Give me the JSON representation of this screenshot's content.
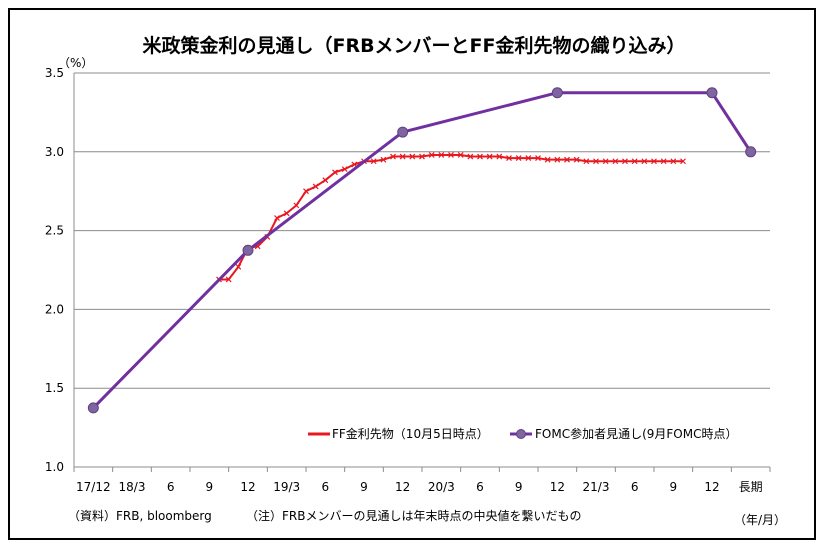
{
  "chart_data": {
    "type": "line",
    "title": "米政策金利の見通し（FRBメンバーとFF金利先物の織り込み）",
    "ylabel": "（%）",
    "xlabel": "（年/月）",
    "ylim": [
      1.0,
      3.5
    ],
    "yticks": [
      "1.0",
      "1.5",
      "2.0",
      "2.5",
      "3.0",
      "3.5"
    ],
    "grid": true,
    "legend_position": "bottom-right",
    "categories": [
      "17/12",
      "18/3",
      "6",
      "9",
      "12",
      "19/3",
      "6",
      "9",
      "12",
      "20/3",
      "6",
      "9",
      "12",
      "21/3",
      "6",
      "9",
      "12",
      "長期"
    ],
    "series": [
      {
        "name": "FF金利先物（10月5日時点）",
        "color": "#e8181f",
        "marker": "x",
        "x": [
          3.25,
          3.5,
          3.75,
          4.0,
          4.25,
          4.5,
          4.75,
          5.0,
          5.25,
          5.5,
          5.75,
          6.0,
          6.25,
          6.5,
          6.75,
          7.0,
          7.25,
          7.5,
          7.75,
          8.0,
          8.25,
          8.5,
          8.75,
          9.0,
          9.25,
          9.5,
          9.75,
          10.0,
          10.25,
          10.5,
          10.75,
          11.0,
          11.25,
          11.5,
          11.75,
          12.0,
          12.25,
          12.5,
          12.75,
          13.0,
          13.25,
          13.5,
          13.75,
          14.0,
          14.25,
          14.5,
          14.75,
          15.0,
          15.25
        ],
        "values": [
          2.19,
          2.19,
          2.27,
          2.39,
          2.4,
          2.46,
          2.58,
          2.61,
          2.66,
          2.75,
          2.78,
          2.82,
          2.87,
          2.89,
          2.92,
          2.94,
          2.94,
          2.95,
          2.97,
          2.97,
          2.97,
          2.97,
          2.98,
          2.98,
          2.98,
          2.98,
          2.97,
          2.97,
          2.97,
          2.97,
          2.96,
          2.96,
          2.96,
          2.96,
          2.95,
          2.95,
          2.95,
          2.95,
          2.94,
          2.94,
          2.94,
          2.94,
          2.94,
          2.94,
          2.94,
          2.94,
          2.94,
          2.94,
          2.94
        ]
      },
      {
        "name": "FOMC参加者見通し(9月FOMC時点）",
        "color": "#7030a0",
        "marker": "circle",
        "x": [
          0,
          4,
          8,
          12,
          16,
          17
        ],
        "values": [
          1.375,
          2.375,
          3.125,
          3.375,
          3.375,
          3.0
        ]
      }
    ],
    "notes": [
      "（資料）FRB, bloomberg",
      "（注）FRBメンバーの見通しは年末時点の中央値を繋いだもの"
    ]
  }
}
